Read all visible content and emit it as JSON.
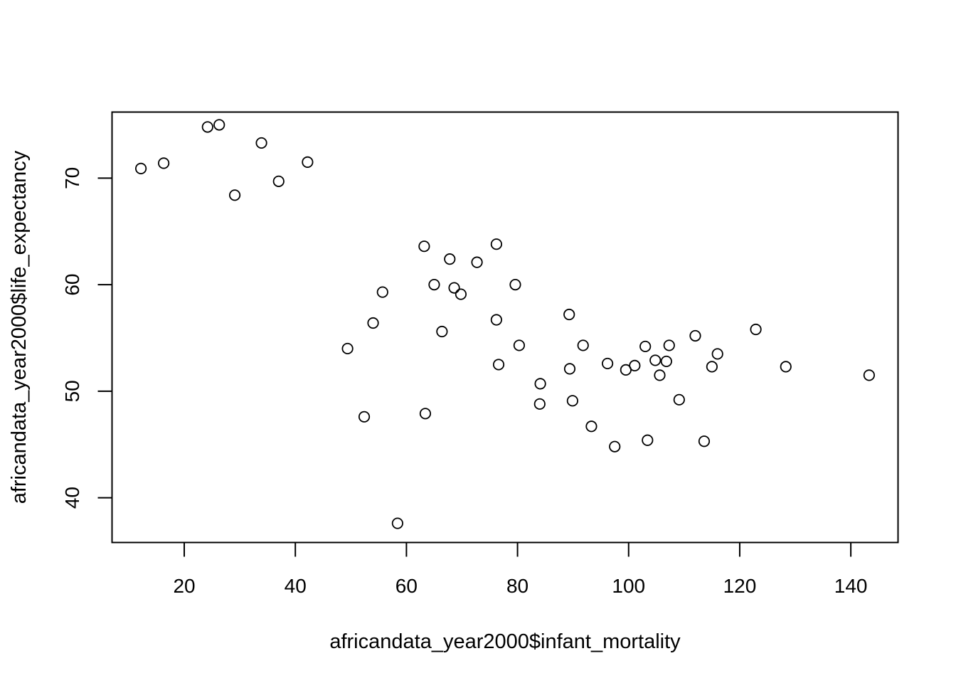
{
  "chart_data": {
    "type": "scatter",
    "title": "",
    "xlabel": "africandata_year2000$infant_mortality",
    "ylabel": "africandata_year2000$life_expectancy",
    "xlim": [
      7,
      148.5
    ],
    "ylim": [
      35.8,
      76.2
    ],
    "xticks": [
      20,
      40,
      60,
      80,
      100,
      120,
      140
    ],
    "yticks": [
      40,
      50,
      60,
      70
    ],
    "grid": false,
    "marker": "open-circle",
    "points": [
      {
        "x": 12.2,
        "y": 70.9
      },
      {
        "x": 16.3,
        "y": 71.4
      },
      {
        "x": 24.2,
        "y": 74.8
      },
      {
        "x": 26.3,
        "y": 75.0
      },
      {
        "x": 29.1,
        "y": 68.4
      },
      {
        "x": 33.9,
        "y": 73.3
      },
      {
        "x": 37.0,
        "y": 69.7
      },
      {
        "x": 42.2,
        "y": 71.5
      },
      {
        "x": 49.4,
        "y": 54.0
      },
      {
        "x": 52.4,
        "y": 47.6
      },
      {
        "x": 54.0,
        "y": 56.4
      },
      {
        "x": 55.7,
        "y": 59.3
      },
      {
        "x": 58.4,
        "y": 37.6
      },
      {
        "x": 63.2,
        "y": 63.6
      },
      {
        "x": 63.4,
        "y": 47.9
      },
      {
        "x": 65.0,
        "y": 60.0
      },
      {
        "x": 66.4,
        "y": 55.6
      },
      {
        "x": 67.8,
        "y": 62.4
      },
      {
        "x": 68.6,
        "y": 59.7
      },
      {
        "x": 69.8,
        "y": 59.1
      },
      {
        "x": 72.7,
        "y": 62.1
      },
      {
        "x": 76.2,
        "y": 63.8
      },
      {
        "x": 76.2,
        "y": 56.7
      },
      {
        "x": 76.6,
        "y": 52.5
      },
      {
        "x": 79.6,
        "y": 60.0
      },
      {
        "x": 80.3,
        "y": 54.3
      },
      {
        "x": 84.0,
        "y": 48.8
      },
      {
        "x": 84.1,
        "y": 50.7
      },
      {
        "x": 89.3,
        "y": 57.2
      },
      {
        "x": 89.4,
        "y": 52.1
      },
      {
        "x": 89.9,
        "y": 49.1
      },
      {
        "x": 91.8,
        "y": 54.3
      },
      {
        "x": 93.3,
        "y": 46.7
      },
      {
        "x": 96.2,
        "y": 52.6
      },
      {
        "x": 97.5,
        "y": 44.8
      },
      {
        "x": 99.5,
        "y": 52.0
      },
      {
        "x": 101.1,
        "y": 52.4
      },
      {
        "x": 103.0,
        "y": 54.2
      },
      {
        "x": 103.4,
        "y": 45.4
      },
      {
        "x": 104.8,
        "y": 52.9
      },
      {
        "x": 105.6,
        "y": 51.5
      },
      {
        "x": 106.8,
        "y": 52.8
      },
      {
        "x": 107.3,
        "y": 54.3
      },
      {
        "x": 109.1,
        "y": 49.2
      },
      {
        "x": 112.0,
        "y": 55.2
      },
      {
        "x": 113.6,
        "y": 45.3
      },
      {
        "x": 115.0,
        "y": 52.3
      },
      {
        "x": 116.0,
        "y": 53.5
      },
      {
        "x": 122.9,
        "y": 55.8
      },
      {
        "x": 128.3,
        "y": 52.3
      },
      {
        "x": 143.3,
        "y": 51.5
      }
    ]
  }
}
